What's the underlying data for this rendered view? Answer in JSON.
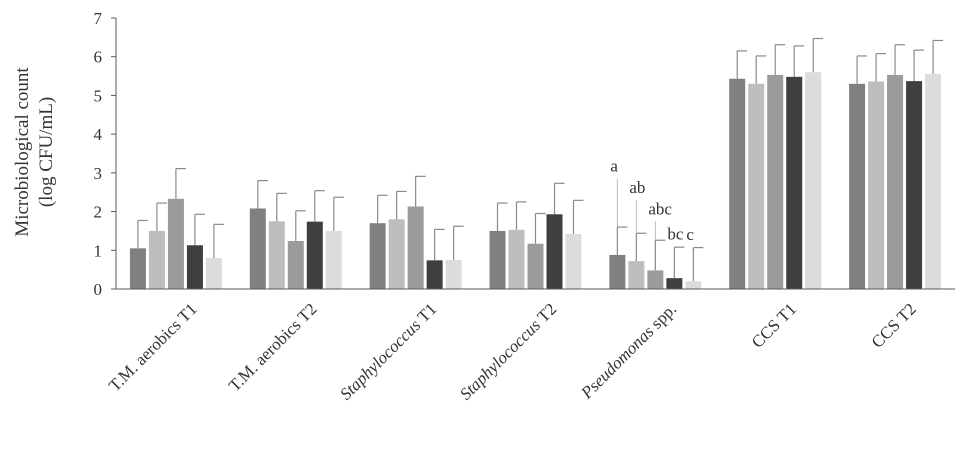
{
  "chart_data": {
    "type": "bar",
    "ylabel_lines": [
      "Microbiological count",
      "(log CFU/mL)"
    ],
    "ylim": [
      0,
      7
    ],
    "yticks": [
      0,
      1,
      2,
      3,
      4,
      5,
      6,
      7
    ],
    "grid": false,
    "categories": [
      [
        {
          "t": "T.M. aerobics T1",
          "i": false
        }
      ],
      [
        {
          "t": "T.M. aerobics  T2",
          "i": false
        }
      ],
      [
        {
          "t": "Staphylococcus",
          "i": true
        },
        {
          "t": "  T1",
          "i": false
        }
      ],
      [
        {
          "t": "Staphylococcus",
          "i": true
        },
        {
          "t": "  T2",
          "i": false
        }
      ],
      [
        {
          "t": "Pseudomonas",
          "i": true
        },
        {
          "t": " spp.",
          "i": false
        }
      ],
      [
        {
          "t": "CCS T1",
          "i": false
        }
      ],
      [
        {
          "t": "CCS T2",
          "i": false
        }
      ]
    ],
    "bar_colors": [
      "#808080",
      "#bdbdbd",
      "#9b9b9b",
      "#3f3f3f",
      "#dcdcdc"
    ],
    "series": [
      {
        "values": [
          1.05,
          2.08,
          1.7,
          1.5,
          0.88,
          5.43,
          5.3
        ],
        "errors": [
          0.72,
          0.72,
          0.72,
          0.72,
          0.72,
          0.72,
          0.72
        ]
      },
      {
        "values": [
          1.5,
          1.75,
          1.8,
          1.53,
          0.72,
          5.3,
          5.36
        ],
        "errors": [
          0.72,
          0.72,
          0.72,
          0.72,
          0.72,
          0.72,
          0.72
        ]
      },
      {
        "values": [
          2.33,
          1.24,
          2.13,
          1.17,
          0.48,
          5.53,
          5.53
        ],
        "errors": [
          0.78,
          0.78,
          0.78,
          0.78,
          0.78,
          0.78,
          0.78
        ]
      },
      {
        "values": [
          1.13,
          1.74,
          0.74,
          1.93,
          0.28,
          5.48,
          5.37
        ],
        "errors": [
          0.8,
          0.8,
          0.8,
          0.8,
          0.8,
          0.8,
          0.8
        ]
      },
      {
        "values": [
          0.8,
          1.5,
          0.75,
          1.42,
          0.2,
          5.6,
          5.55
        ],
        "errors": [
          0.87,
          0.87,
          0.87,
          0.87,
          0.87,
          0.87,
          0.87
        ]
      }
    ],
    "annotations": [
      {
        "category_index": 4,
        "series_index": 0,
        "text": "a",
        "bracket_top": 2.85
      },
      {
        "category_index": 4,
        "series_index": 1,
        "text": "ab",
        "bracket_top": 2.3
      },
      {
        "category_index": 4,
        "series_index": 2,
        "text": "abc",
        "bracket_top": 1.75
      },
      {
        "category_index": 4,
        "series_index": 3,
        "text": "bc",
        "bracket_top": 1.1
      },
      {
        "category_index": 4,
        "series_index": 4,
        "text": "c",
        "bracket_top": 1.08
      }
    ]
  }
}
